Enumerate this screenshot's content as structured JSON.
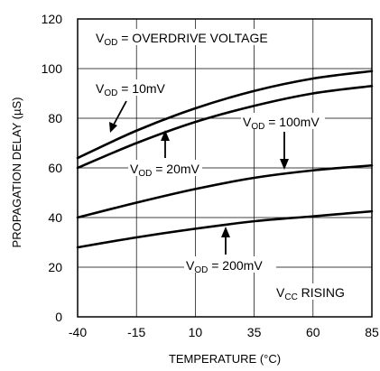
{
  "chart_data": {
    "type": "line",
    "title": "",
    "xlabel": "TEMPERATURE (°C)",
    "ylabel": "PROPAGATION DELAY (µS)",
    "xlim": [
      -40,
      85
    ],
    "ylim": [
      0,
      120
    ],
    "x_ticks": [
      -40,
      -15,
      10,
      35,
      60,
      85
    ],
    "x_tick_labels": [
      "-40",
      "-15",
      "10",
      "35",
      "60",
      "85"
    ],
    "y_ticks": [
      0,
      20,
      40,
      60,
      80,
      100,
      120
    ],
    "y_tick_labels": [
      "0",
      "20",
      "40",
      "60",
      "80",
      "100",
      "120"
    ],
    "grid": true,
    "line_color": "#000000",
    "x": [
      -40,
      -15,
      10,
      35,
      60,
      85
    ],
    "series": [
      {
        "label_main": "V",
        "label_sub": "OD",
        "label_rest": " = 10mV",
        "values": [
          64,
          75,
          84,
          91,
          96,
          99
        ]
      },
      {
        "label_main": "V",
        "label_sub": "OD",
        "label_rest": " = 20mV",
        "values": [
          60,
          70,
          78.5,
          85,
          90,
          93
        ]
      },
      {
        "label_main": "V",
        "label_sub": "OD",
        "label_rest": " = 100mV",
        "values": [
          40,
          46,
          51.5,
          56,
          59,
          61
        ]
      },
      {
        "label_main": "V",
        "label_sub": "OD",
        "label_rest": " = 200mV",
        "values": [
          28,
          32,
          35.5,
          38.5,
          40.5,
          42.5
        ]
      }
    ],
    "annotations": {
      "header": {
        "main": "V",
        "sub": "OD",
        "rest": " = OVERDRIVE VOLTAGE"
      },
      "condition": {
        "main": "V",
        "sub": "CC",
        "rest": " RISING"
      }
    }
  }
}
